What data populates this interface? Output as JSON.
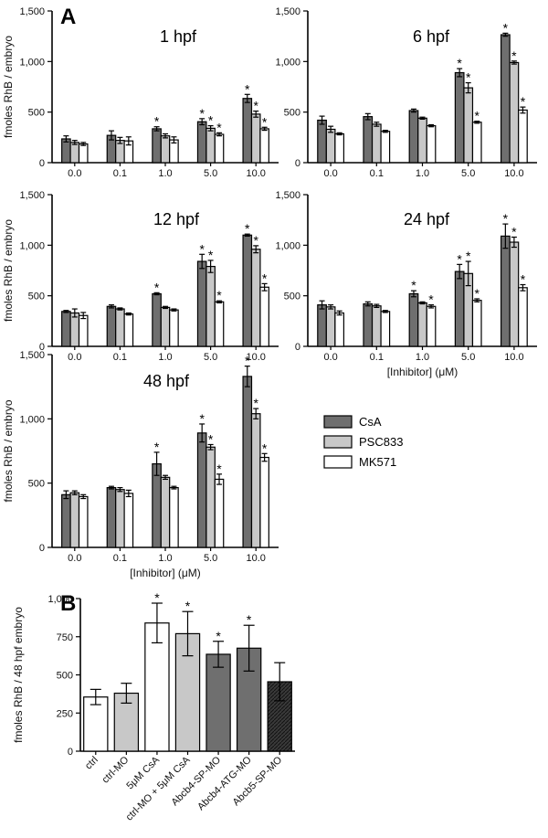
{
  "panel_labels": [
    "A",
    "B"
  ],
  "colors": {
    "CsA": "#6f6f6f",
    "PSC833": "#c8c8c8",
    "MK571": "#ffffff",
    "Abcb5-SP-MO": "#3a3a3a"
  },
  "legend": [
    {
      "name": "CsA",
      "color": "#6f6f6f"
    },
    {
      "name": "PSC833",
      "color": "#c8c8c8"
    },
    {
      "name": "MK571",
      "color": "#ffffff"
    }
  ],
  "chart_data": [
    {
      "type": "bar",
      "panel": "A",
      "title": "1 hpf",
      "ylabel": "fmoles RhB / embryo",
      "xlabel": "",
      "ylim": [
        0,
        1500
      ],
      "yticks": [
        "0",
        "500",
        "1,000",
        "1,500"
      ],
      "categories": [
        "0.0",
        "0.1",
        "1.0",
        "5.0",
        "10.0"
      ],
      "series": [
        {
          "name": "CsA",
          "values": [
            235,
            270,
            335,
            405,
            635
          ],
          "errors": [
            30,
            45,
            20,
            30,
            40
          ],
          "sig": [
            false,
            false,
            true,
            true,
            true
          ]
        },
        {
          "name": "PSC833",
          "values": [
            200,
            220,
            265,
            340,
            480
          ],
          "errors": [
            20,
            30,
            20,
            25,
            30
          ],
          "sig": [
            false,
            false,
            false,
            true,
            true
          ]
        },
        {
          "name": "MK571",
          "values": [
            185,
            215,
            225,
            280,
            335
          ],
          "errors": [
            15,
            40,
            30,
            15,
            15
          ],
          "sig": [
            false,
            false,
            false,
            true,
            true
          ]
        }
      ]
    },
    {
      "type": "bar",
      "panel": "A",
      "title": "6 hpf",
      "ylabel": "",
      "xlabel": "",
      "ylim": [
        0,
        1500
      ],
      "yticks": [
        "0",
        "500",
        "1,000",
        "1,500"
      ],
      "categories": [
        "0.0",
        "0.1",
        "1.0",
        "5.0",
        "10.0"
      ],
      "series": [
        {
          "name": "CsA",
          "values": [
            420,
            455,
            515,
            890,
            1265
          ],
          "errors": [
            40,
            30,
            15,
            40,
            15
          ],
          "sig": [
            false,
            false,
            false,
            true,
            true
          ]
        },
        {
          "name": "PSC833",
          "values": [
            330,
            380,
            440,
            740,
            990
          ],
          "errors": [
            30,
            20,
            10,
            50,
            15
          ],
          "sig": [
            false,
            false,
            false,
            true,
            true
          ]
        },
        {
          "name": "MK571",
          "values": [
            285,
            310,
            365,
            400,
            520
          ],
          "errors": [
            10,
            10,
            10,
            10,
            30
          ],
          "sig": [
            false,
            false,
            false,
            true,
            true
          ]
        }
      ]
    },
    {
      "type": "bar",
      "panel": "A",
      "title": "12 hpf",
      "ylabel": "fmoles RhB / embryo",
      "xlabel": "",
      "ylim": [
        0,
        1500
      ],
      "yticks": [
        "0",
        "500",
        "1,000",
        "1,500"
      ],
      "categories": [
        "0.0",
        "0.1",
        "1.0",
        "5.0",
        "10.0"
      ],
      "series": [
        {
          "name": "CsA",
          "values": [
            345,
            395,
            520,
            840,
            1100
          ],
          "errors": [
            10,
            15,
            10,
            70,
            10
          ],
          "sig": [
            false,
            false,
            true,
            true,
            true
          ]
        },
        {
          "name": "PSC833",
          "values": [
            330,
            370,
            385,
            790,
            960
          ],
          "errors": [
            40,
            10,
            10,
            60,
            35
          ],
          "sig": [
            false,
            false,
            false,
            true,
            true
          ]
        },
        {
          "name": "MK571",
          "values": [
            305,
            320,
            360,
            440,
            585
          ],
          "errors": [
            30,
            10,
            10,
            10,
            35
          ],
          "sig": [
            false,
            false,
            false,
            true,
            true
          ]
        }
      ]
    },
    {
      "type": "bar",
      "panel": "A",
      "title": "24 hpf",
      "ylabel": "",
      "xlabel": "[Inhibitor] (μM)",
      "ylim": [
        0,
        1500
      ],
      "yticks": [
        "0",
        "500",
        "1,000",
        "1,500"
      ],
      "categories": [
        "0.0",
        "0.1",
        "1.0",
        "5.0",
        "10.0"
      ],
      "series": [
        {
          "name": "CsA",
          "values": [
            410,
            420,
            520,
            740,
            1090
          ],
          "errors": [
            40,
            20,
            30,
            70,
            120
          ],
          "sig": [
            false,
            false,
            true,
            true,
            true
          ]
        },
        {
          "name": "PSC833",
          "values": [
            390,
            400,
            430,
            720,
            1030
          ],
          "errors": [
            20,
            15,
            10,
            120,
            50
          ],
          "sig": [
            false,
            false,
            false,
            true,
            true
          ]
        },
        {
          "name": "MK571",
          "values": [
            330,
            345,
            395,
            455,
            580
          ],
          "errors": [
            20,
            10,
            15,
            15,
            30
          ],
          "sig": [
            false,
            false,
            true,
            true,
            true
          ]
        }
      ]
    },
    {
      "type": "bar",
      "panel": "A",
      "title": "48 hpf",
      "ylabel": "fmoles RhB / embryo",
      "xlabel": "[Inhibitor] (μM)",
      "ylim": [
        0,
        1500
      ],
      "yticks": [
        "0",
        "500",
        "1,000",
        "1,500"
      ],
      "categories": [
        "0.0",
        "0.1",
        "1.0",
        "5.0",
        "10.0"
      ],
      "series": [
        {
          "name": "CsA",
          "values": [
            410,
            465,
            650,
            890,
            1330
          ],
          "errors": [
            30,
            10,
            90,
            70,
            80
          ],
          "sig": [
            false,
            false,
            true,
            true,
            true
          ]
        },
        {
          "name": "PSC833",
          "values": [
            425,
            450,
            545,
            780,
            1040
          ],
          "errors": [
            15,
            15,
            15,
            20,
            40
          ],
          "sig": [
            false,
            false,
            false,
            true,
            true
          ]
        },
        {
          "name": "MK571",
          "values": [
            395,
            420,
            465,
            530,
            700
          ],
          "errors": [
            15,
            25,
            10,
            40,
            30
          ],
          "sig": [
            false,
            false,
            false,
            true,
            true
          ]
        }
      ]
    },
    {
      "type": "bar",
      "panel": "B",
      "title": "",
      "ylabel": "fmoles RhB / 48 hpf embryo",
      "xlabel": "",
      "ylim": [
        0,
        1000
      ],
      "yticks": [
        "0",
        "250",
        "500",
        "750",
        "1,000"
      ],
      "categories": [
        "ctrl",
        "ctrl-MO",
        "5μM CsA",
        "ctrl-MO + 5μM CsA",
        "Abcb4-SP-MO",
        "Abcb4-ATG-MO",
        "Abcb5-SP-MO"
      ],
      "values": [
        355,
        380,
        840,
        770,
        635,
        675,
        455
      ],
      "errors": [
        50,
        65,
        130,
        145,
        85,
        150,
        125
      ],
      "sig": [
        false,
        false,
        true,
        true,
        true,
        true,
        false
      ],
      "fills": [
        "#ffffff",
        "#c8c8c8",
        "#ffffff",
        "#c8c8c8",
        "#6f6f6f",
        "#6f6f6f",
        "hatch"
      ]
    }
  ]
}
